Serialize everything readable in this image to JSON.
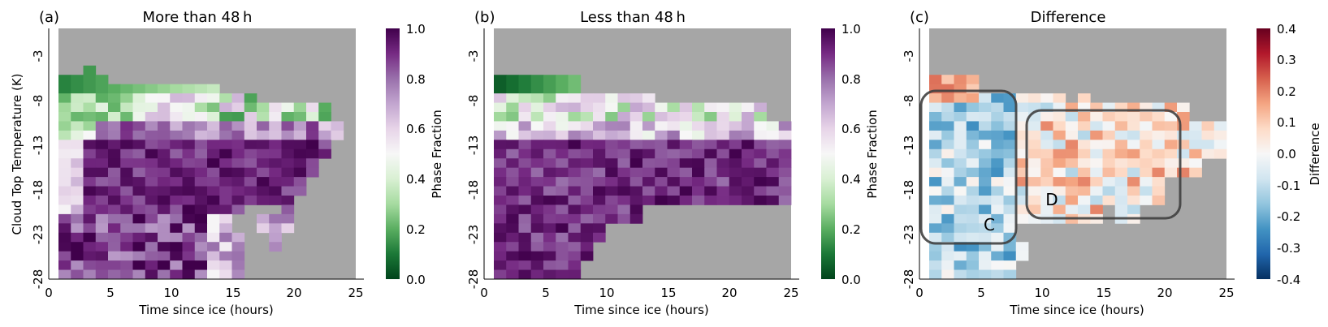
{
  "chart_data": [
    {
      "type": "heatmap",
      "panel_label": "(a)",
      "title": "More than 48 h",
      "xlabel": "Time since ice (hours)",
      "ylabel": "Cloud Top Temperature (K)",
      "xlim": [
        0,
        25
      ],
      "ylim": [
        -28,
        -1
      ],
      "x_ticks": [
        "0",
        "5",
        "10",
        "15",
        "20",
        "25"
      ],
      "y_ticks": [
        "-3",
        "-8",
        "-13",
        "-18",
        "-23",
        "-28"
      ],
      "colorbar": {
        "label": "Phase Fraction",
        "min": 0.0,
        "max": 1.0,
        "ticks": [
          "0.0",
          "0.2",
          "0.4",
          "0.6",
          "0.8",
          "1.0"
        ],
        "colormap": "PRGn"
      },
      "missing_color": "#a6a6a6",
      "grid": false
    },
    {
      "type": "heatmap",
      "panel_label": "(b)",
      "title": "Less than 48 h",
      "xlabel": "Time since ice (hours)",
      "ylabel": "",
      "xlim": [
        0,
        25
      ],
      "ylim": [
        -28,
        -1
      ],
      "x_ticks": [
        "0",
        "5",
        "10",
        "15",
        "20",
        "25"
      ],
      "y_ticks": [
        "-3",
        "-8",
        "-13",
        "-18",
        "-23",
        "-28"
      ],
      "colorbar": {
        "label": "Phase Fraction",
        "min": 0.0,
        "max": 1.0,
        "ticks": [
          "0.0",
          "0.2",
          "0.4",
          "0.6",
          "0.8",
          "1.0"
        ],
        "colormap": "PRGn"
      },
      "missing_color": "#a6a6a6",
      "grid": false
    },
    {
      "type": "heatmap",
      "panel_label": "(c)",
      "title": "Difference",
      "xlabel": "Time since ice (hours)",
      "ylabel": "",
      "xlim": [
        0,
        25
      ],
      "ylim": [
        -28,
        -1
      ],
      "x_ticks": [
        "0",
        "5",
        "10",
        "15",
        "20",
        "25"
      ],
      "y_ticks": [
        "-3",
        "-8",
        "-13",
        "-18",
        "-23",
        "-28"
      ],
      "colorbar": {
        "label": "Difference",
        "min": -0.4,
        "max": 0.4,
        "ticks": [
          "-0.4",
          "-0.3",
          "-0.2",
          "-0.1",
          "0.0",
          "0.1",
          "0.2",
          "0.3",
          "0.4"
        ],
        "colormap": "RdBu_r"
      },
      "missing_color": "#a6a6a6",
      "annotations": [
        {
          "label": "C",
          "x_range": [
            0,
            8
          ],
          "y_range": [
            -24,
            -7.5
          ]
        },
        {
          "label": "D",
          "x_range": [
            8.5,
            21.5
          ],
          "y_range": [
            -21,
            -10
          ]
        }
      ],
      "grid": false
    }
  ]
}
